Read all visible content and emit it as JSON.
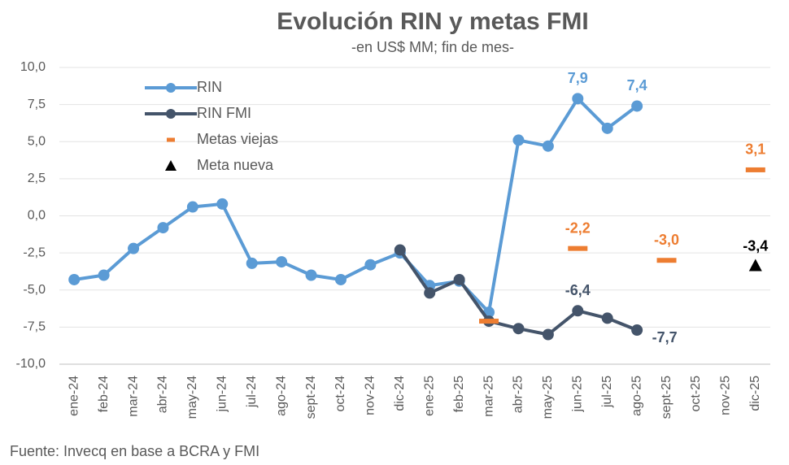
{
  "chart_data": {
    "type": "line",
    "title": "Evolución RIN y metas FMI",
    "subtitle": "-en US$ MM; fin de mes-",
    "source": "Fuente: Invecq en base a BCRA y FMI",
    "categories": [
      "ene-24",
      "feb-24",
      "mar-24",
      "abr-24",
      "may-24",
      "jun-24",
      "jul-24",
      "ago-24",
      "sept-24",
      "oct-24",
      "nov-24",
      "dic-24",
      "ene-25",
      "feb-25",
      "mar-25",
      "abr-25",
      "may-25",
      "jun-25",
      "jul-25",
      "ago-25",
      "sept-25",
      "oct-25",
      "nov-25",
      "dic-25"
    ],
    "ylim": [
      -10,
      10
    ],
    "yticks": [
      {
        "value": -10,
        "label": "-10,0"
      },
      {
        "value": -7.5,
        "label": "-7,5"
      },
      {
        "value": -5,
        "label": "-5,0"
      },
      {
        "value": -2.5,
        "label": "-2,5"
      },
      {
        "value": 0,
        "label": "0,0"
      },
      {
        "value": 2.5,
        "label": "2,5"
      },
      {
        "value": 5,
        "label": "5,0"
      },
      {
        "value": 7.5,
        "label": "7,5"
      },
      {
        "value": 10,
        "label": "10,0"
      }
    ],
    "grid": true,
    "legend": "upper-left",
    "series": [
      {
        "name": "RIN",
        "color": "#5b9bd5",
        "marker": "circle",
        "line": true,
        "values": [
          -4.3,
          -4.0,
          -2.2,
          -0.8,
          0.6,
          0.8,
          -3.2,
          -3.1,
          -4.0,
          -4.3,
          -3.3,
          -2.5,
          -4.7,
          -4.4,
          -6.5,
          5.1,
          4.7,
          7.9,
          5.9,
          7.4,
          null,
          null,
          null,
          null
        ],
        "value_labels": [
          null,
          null,
          null,
          null,
          null,
          null,
          null,
          null,
          null,
          null,
          null,
          null,
          null,
          null,
          null,
          null,
          null,
          "7,9",
          null,
          "7,4",
          null,
          null,
          null,
          null
        ]
      },
      {
        "name": "RIN FMI",
        "color": "#44546a",
        "marker": "circle",
        "line": true,
        "values": [
          null,
          null,
          null,
          null,
          null,
          null,
          null,
          null,
          null,
          null,
          null,
          -2.3,
          -5.2,
          -4.3,
          -7.1,
          -7.6,
          -8.0,
          -6.4,
          -6.9,
          -7.7,
          null,
          null,
          null,
          null
        ],
        "value_labels": [
          null,
          null,
          null,
          null,
          null,
          null,
          null,
          null,
          null,
          null,
          null,
          null,
          null,
          null,
          null,
          null,
          null,
          "-6,4",
          null,
          "-7,7",
          null,
          null,
          null,
          null
        ]
      },
      {
        "name": "Metas viejas",
        "color": "#ed7d31",
        "marker": "dash",
        "line": false,
        "values": [
          null,
          null,
          null,
          null,
          null,
          null,
          null,
          null,
          null,
          null,
          null,
          null,
          null,
          null,
          -7.1,
          null,
          null,
          -2.2,
          null,
          null,
          -3.0,
          null,
          null,
          3.1
        ],
        "value_labels": [
          null,
          null,
          null,
          null,
          null,
          null,
          null,
          null,
          null,
          null,
          null,
          null,
          null,
          null,
          null,
          null,
          null,
          "-2,2",
          null,
          null,
          "-3,0",
          null,
          null,
          "3,1"
        ]
      },
      {
        "name": "Meta nueva",
        "color": "#000000",
        "marker": "triangle",
        "line": false,
        "values": [
          null,
          null,
          null,
          null,
          null,
          null,
          null,
          null,
          null,
          null,
          null,
          null,
          null,
          null,
          null,
          null,
          null,
          null,
          null,
          null,
          null,
          null,
          null,
          -3.4
        ],
        "value_labels": [
          null,
          null,
          null,
          null,
          null,
          null,
          null,
          null,
          null,
          null,
          null,
          null,
          null,
          null,
          null,
          null,
          null,
          null,
          null,
          null,
          null,
          null,
          null,
          "-3,4"
        ]
      }
    ]
  }
}
